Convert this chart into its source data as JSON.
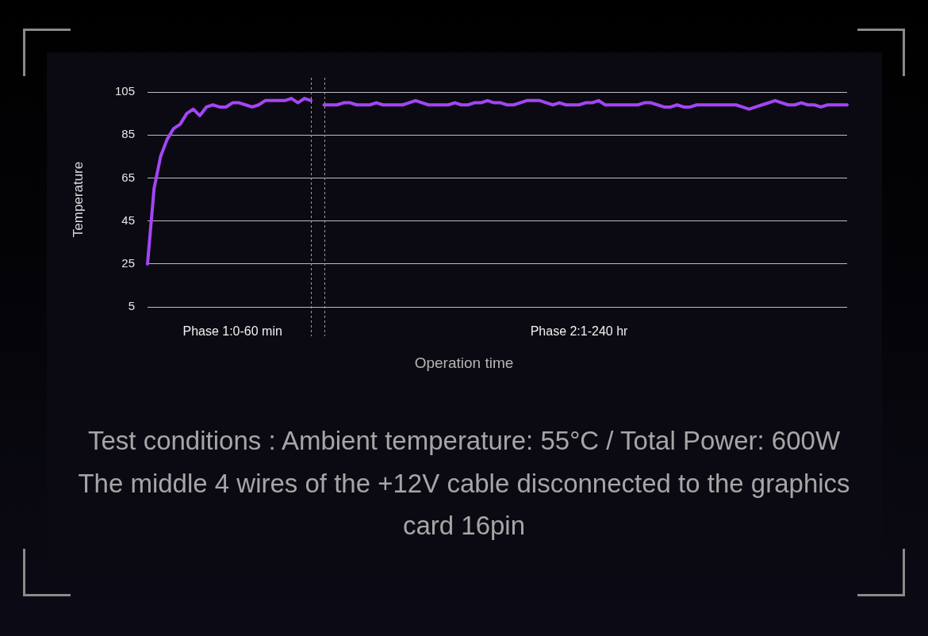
{
  "chart_data": {
    "type": "line",
    "categories": [
      null,
      null,
      null,
      null,
      null,
      null,
      null,
      null,
      null,
      null,
      null,
      null,
      null,
      "Phase 1:0-60 min",
      null,
      null,
      null,
      null,
      null,
      null,
      null,
      null,
      null,
      null,
      null,
      null,
      null,
      null,
      null,
      null,
      null,
      null,
      null,
      null,
      null,
      null,
      null,
      null,
      null,
      null,
      null,
      null,
      null,
      null,
      null,
      null,
      null,
      null,
      null,
      null,
      null,
      null,
      null,
      null,
      null,
      null,
      null,
      null,
      null,
      null,
      null,
      null,
      null,
      null,
      null,
      null,
      "Phase 2:1-240 hr",
      null,
      null,
      null,
      null,
      null,
      null,
      null,
      null,
      null,
      null,
      null,
      null,
      null,
      null,
      null,
      null,
      null,
      null,
      null,
      null,
      null,
      null,
      null,
      null,
      null,
      null,
      null,
      null,
      null,
      null,
      null,
      null,
      null,
      null,
      null,
      null,
      null,
      null,
      null,
      null,
      null
    ],
    "values": [
      25,
      60,
      75,
      83,
      88,
      90,
      95,
      97,
      94,
      98,
      99,
      98,
      98,
      100,
      100,
      99,
      98,
      99,
      101,
      101,
      101,
      101,
      102,
      100,
      102,
      101,
      null,
      99,
      99,
      99,
      100,
      100,
      99,
      99,
      99,
      100,
      99,
      99,
      99,
      99,
      100,
      101,
      100,
      99,
      99,
      99,
      99,
      100,
      99,
      99,
      100,
      100,
      101,
      100,
      100,
      99,
      99,
      100,
      101,
      101,
      101,
      100,
      99,
      100,
      99,
      99,
      99,
      100,
      100,
      101,
      99,
      99,
      99,
      99,
      99,
      99,
      100,
      100,
      99,
      98,
      98,
      99,
      98,
      98,
      99,
      99,
      99,
      99,
      99,
      99,
      99,
      98,
      97,
      98,
      99,
      100,
      101,
      100,
      99,
      99,
      100,
      99,
      99,
      98,
      99,
      99,
      99,
      99
    ],
    "color": "#a445f5",
    "ylim": [
      5,
      105
    ],
    "yticks": [
      5,
      25,
      45,
      65,
      85,
      105
    ],
    "grid": "y",
    "xlabel": "Operation time",
    "ylabel": "Temperature",
    "annotations": [
      "Test conditions : Ambient temperature: 55°C / Total Power: 600W",
      "The middle 4 wires of the +12V cable disconnected to the graphics card 16pin"
    ]
  }
}
